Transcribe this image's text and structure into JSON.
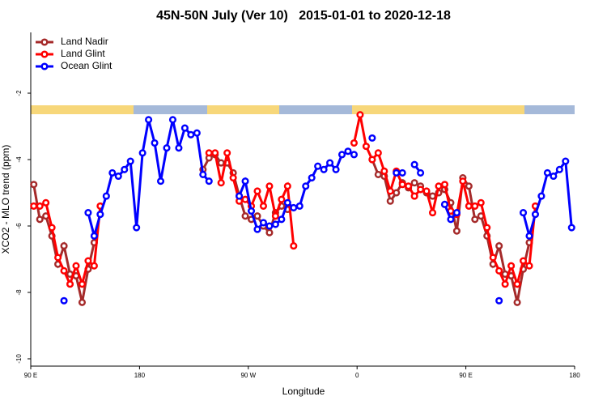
{
  "chart_data": {
    "type": "line",
    "title": "45N-50N July (Ver 10)   2015-01-01 to 2020-12-18",
    "xlabel": "Longitude",
    "ylabel": "XCO2 - MLO trend (ppm)",
    "xlim": [
      90,
      540
    ],
    "ylim": [
      -10.22,
      -0.17
    ],
    "xticks": [
      {
        "value": 90,
        "label": "90 E"
      },
      180,
      {
        "value": 270,
        "label": "90 W"
      },
      {
        "value": 360,
        "label": "0"
      },
      {
        "value": 450,
        "label": "90 E"
      },
      {
        "value": 540,
        "label": "180"
      }
    ],
    "yticks": [
      -2,
      -4,
      -6,
      -8,
      -10
    ],
    "legend": "top-left",
    "x": [
      92.5,
      97.5,
      102.5,
      107.5,
      112.5,
      117.5,
      122.5,
      127.5,
      132.5,
      137.5,
      142.5,
      147.5,
      152.5,
      157.5,
      162.5,
      167.5,
      172.5,
      177.5,
      182.5,
      187.5,
      192.5,
      197.5,
      202.5,
      207.5,
      212.5,
      217.5,
      222.5,
      227.5,
      232.5,
      237.5,
      242.5,
      247.5,
      252.5,
      257.5,
      262.5,
      267.5,
      272.5,
      277.5,
      282.5,
      287.5,
      292.5,
      297.5,
      302.5,
      307.5,
      312.5,
      317.5,
      322.5,
      327.5,
      332.5,
      337.5,
      342.5,
      347.5,
      352.5,
      357.5,
      362.5,
      367.5,
      372.5,
      377.5,
      382.5,
      387.5,
      392.5,
      397.5,
      402.5,
      407.5,
      412.5,
      417.5,
      422.5,
      427.5,
      432.5,
      437.5,
      442.5,
      447.5,
      452.5,
      457.5,
      462.5,
      467.5,
      472.5,
      477.5,
      482.5,
      487.5,
      492.5,
      497.5,
      502.5,
      507.5,
      512.5,
      517.5,
      522.5,
      527.5,
      532.5,
      537.5
    ],
    "series": [
      {
        "name": "Land Nadir",
        "color": "#a52a2a",
        "values": [
          -4.75,
          -5.8,
          -5.7,
          -6.3,
          -7.15,
          -6.6,
          -7.45,
          -7.5,
          -8.3,
          -7.3,
          -6.5,
          null,
          null,
          null,
          null,
          null,
          null,
          null,
          null,
          null,
          null,
          null,
          null,
          null,
          null,
          null,
          null,
          null,
          -4.3,
          -3.95,
          -3.85,
          -4.1,
          -4.1,
          -4.4,
          -5.1,
          -5.7,
          -5.8,
          -5.7,
          -6.0,
          -6.2,
          -5.6,
          -5.4,
          -5.5,
          null,
          null,
          null,
          null,
          null,
          null,
          null,
          null,
          null,
          null,
          null,
          null,
          null,
          -4.0,
          -4.45,
          -4.5,
          -5.25,
          -5.0,
          -4.7,
          -4.85,
          -4.7,
          -4.8,
          -5.0,
          -5.1,
          -5.0,
          -4.9,
          -5.3,
          -6.15,
          -4.55,
          -4.8,
          -5.8,
          -5.7,
          -6.3,
          -7.15,
          -6.6,
          -7.45,
          -7.5,
          -8.3,
          -7.3,
          -6.5,
          null,
          null,
          null,
          null,
          null,
          null,
          null
        ]
      },
      {
        "name": "Land Glint",
        "color": "#ff0000",
        "values": [
          -5.4,
          -5.4,
          -5.3,
          -6.05,
          -6.95,
          -7.35,
          -7.75,
          -7.2,
          -7.75,
          -7.05,
          -7.2,
          -5.4,
          null,
          null,
          null,
          null,
          null,
          null,
          null,
          null,
          null,
          null,
          null,
          null,
          null,
          null,
          null,
          null,
          null,
          -3.8,
          -3.8,
          -4.7,
          -3.8,
          -4.55,
          -5.25,
          -5.2,
          -5.4,
          -4.95,
          -5.4,
          -4.8,
          -5.7,
          -5.2,
          -4.8,
          -6.6,
          null,
          null,
          null,
          null,
          null,
          null,
          null,
          null,
          null,
          -3.5,
          -2.65,
          -3.6,
          -4.0,
          -3.8,
          -4.35,
          -4.95,
          -4.35,
          -4.75,
          -4.8,
          -5.1,
          -4.9,
          -4.95,
          -5.6,
          -4.8,
          -4.75,
          -5.55,
          -5.65,
          -4.65,
          -5.4,
          -5.4,
          -5.3,
          -6.05,
          -6.95,
          -7.35,
          -7.75,
          -7.2,
          -7.75,
          -7.05,
          -7.2,
          -5.4,
          null,
          null,
          null,
          null,
          null,
          null
        ]
      },
      {
        "name": "Ocean Glint",
        "color": "#0000ff",
        "values": [
          null,
          null,
          null,
          null,
          null,
          -8.25,
          null,
          null,
          null,
          -5.6,
          -6.3,
          -5.65,
          -5.1,
          -4.4,
          -4.5,
          -4.3,
          -4.05,
          -6.05,
          -3.8,
          -2.8,
          -3.5,
          -4.65,
          -3.65,
          -2.8,
          -3.65,
          -3.05,
          -3.25,
          -3.2,
          -4.45,
          -4.65,
          null,
          null,
          null,
          null,
          -5.1,
          -4.65,
          -5.55,
          -6.1,
          -5.9,
          -6.0,
          -5.95,
          -5.8,
          -5.3,
          -5.45,
          -5.4,
          -4.8,
          -4.55,
          -4.2,
          -4.3,
          -4.1,
          -4.3,
          -3.85,
          -3.75,
          -3.85,
          null,
          null,
          -3.35,
          null,
          null,
          null,
          -4.4,
          -4.4,
          null,
          -4.15,
          -4.4,
          null,
          null,
          null,
          -5.35,
          -5.8,
          -5.6,
          null,
          null,
          null,
          null,
          null,
          null,
          -8.25,
          null,
          null,
          null,
          -5.6,
          -6.3,
          -5.65,
          -5.1,
          -4.4,
          -4.5,
          -4.3,
          -4.05,
          -6.05
        ]
      }
    ]
  }
}
